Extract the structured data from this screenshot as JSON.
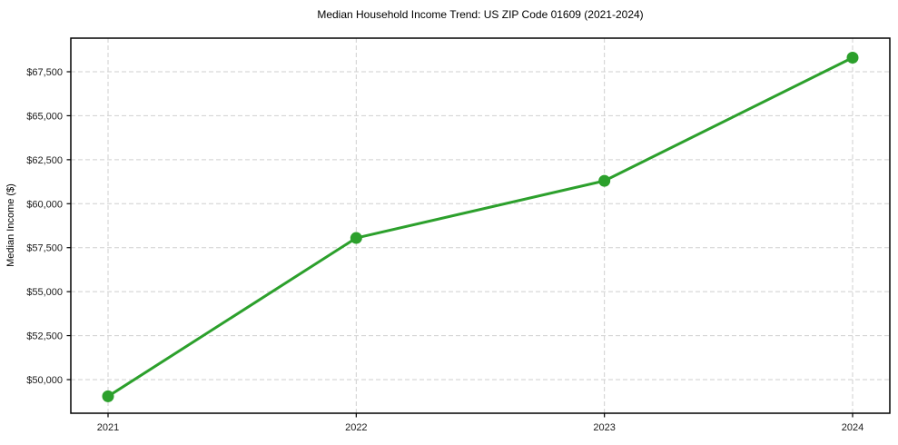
{
  "chart_data": {
    "type": "line",
    "title": "Median Household Income Trend: US ZIP Code 01609 (2021-2024)",
    "xlabel": "",
    "ylabel": "Median Income ($)",
    "x": [
      2021,
      2022,
      2023,
      2024
    ],
    "x_tick_labels": [
      "2021",
      "2022",
      "2023",
      "2024"
    ],
    "series": [
      {
        "name": "Median Household Income",
        "values": [
          49050,
          58050,
          61300,
          68300
        ],
        "color": "#2ca02c",
        "marker": "circle",
        "marker_radius": 6.5,
        "line_width": 3
      }
    ],
    "xlim": [
      2020.85,
      2024.15
    ],
    "ylim": [
      48090,
      69410
    ],
    "yticks": [
      50000,
      52500,
      55000,
      57500,
      60000,
      62500,
      65000,
      67500
    ],
    "ytick_labels": [
      "$50,000",
      "$52,500",
      "$55,000",
      "$57,500",
      "$60,000",
      "$62,500",
      "$65,000",
      "$67,500"
    ],
    "grid": true,
    "grid_style": "dashed",
    "legend": "none",
    "colors": {
      "grid": "#cfcfcf",
      "spine": "#000000",
      "tick": "#000000",
      "tick_text": "#1a1a1a",
      "background": "#ffffff"
    }
  }
}
